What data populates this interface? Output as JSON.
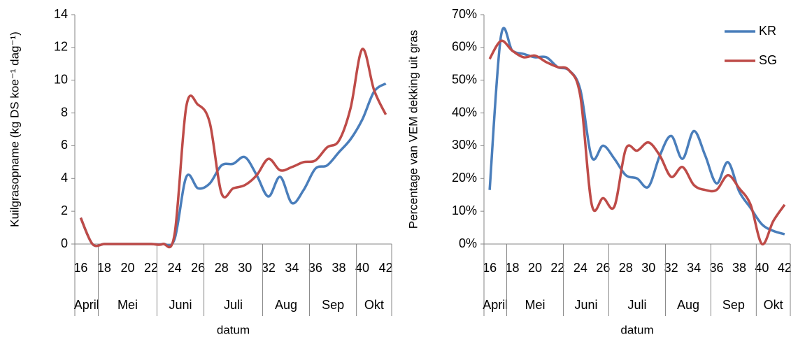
{
  "chart_data": [
    {
      "type": "line",
      "ylabel": "Kuilgrasopname (kg DS koe⁻¹ dag⁻¹)",
      "xlabel": "datum",
      "x": [
        16,
        17,
        18,
        19,
        20,
        21,
        22,
        23,
        24,
        25,
        26,
        27,
        28,
        29,
        30,
        31,
        32,
        33,
        34,
        35,
        36,
        37,
        38,
        39,
        40,
        41,
        42
      ],
      "xlim": [
        15.5,
        42.5
      ],
      "xticks": [
        16,
        18,
        20,
        22,
        24,
        26,
        28,
        30,
        32,
        34,
        36,
        38,
        40,
        42
      ],
      "month_groups": [
        {
          "label": "April",
          "from": 15.5,
          "to": 17.5
        },
        {
          "label": "Mei",
          "from": 17.5,
          "to": 22.5
        },
        {
          "label": "Juni",
          "from": 22.5,
          "to": 26.5
        },
        {
          "label": "Juli",
          "from": 26.5,
          "to": 31.5
        },
        {
          "label": "Aug",
          "from": 31.5,
          "to": 35.5
        },
        {
          "label": "Sep",
          "from": 35.5,
          "to": 39.5
        },
        {
          "label": "Okt",
          "from": 39.5,
          "to": 42.5
        }
      ],
      "ylim": [
        0,
        14
      ],
      "yticks": [
        0,
        2,
        4,
        6,
        8,
        10,
        12,
        14
      ],
      "series": [
        {
          "color": "#4a7ebb",
          "values": [
            1.6,
            0,
            0,
            0,
            0,
            0,
            0,
            0,
            0.3,
            4.1,
            3.4,
            3.7,
            4.8,
            4.9,
            5.3,
            4.2,
            2.9,
            4.1,
            2.5,
            3.3,
            4.6,
            4.8,
            5.6,
            6.4,
            7.6,
            9.3,
            9.8
          ]
        },
        {
          "color": "#be4b48",
          "values": [
            1.6,
            0,
            0,
            0,
            0,
            0,
            0,
            0,
            0.6,
            8.4,
            8.5,
            7.4,
            3.1,
            3.4,
            3.6,
            4.2,
            5.2,
            4.5,
            4.7,
            5.0,
            5.1,
            5.9,
            6.3,
            8.3,
            11.9,
            9.4,
            7.9
          ]
        }
      ]
    },
    {
      "type": "line",
      "ylabel": "Percentage van VEM dekking uit gras",
      "xlabel": "datum",
      "x": [
        16,
        17,
        18,
        19,
        20,
        21,
        22,
        23,
        24,
        25,
        26,
        27,
        28,
        29,
        30,
        31,
        32,
        33,
        34,
        35,
        36,
        37,
        38,
        39,
        40,
        41,
        42
      ],
      "xlim": [
        15.5,
        42.5
      ],
      "xticks": [
        16,
        18,
        20,
        22,
        24,
        26,
        28,
        30,
        32,
        34,
        36,
        38,
        40,
        42
      ],
      "month_groups": [
        {
          "label": "April",
          "from": 15.5,
          "to": 17.5
        },
        {
          "label": "Mei",
          "from": 17.5,
          "to": 22.5
        },
        {
          "label": "Juni",
          "from": 22.5,
          "to": 26.5
        },
        {
          "label": "Juli",
          "from": 26.5,
          "to": 31.5
        },
        {
          "label": "Aug",
          "from": 31.5,
          "to": 35.5
        },
        {
          "label": "Sep",
          "from": 35.5,
          "to": 39.5
        },
        {
          "label": "Okt",
          "from": 39.5,
          "to": 42.5
        }
      ],
      "ylim": [
        0,
        70
      ],
      "yticks": [
        {
          "value": 0,
          "label": "0%"
        },
        {
          "value": 10,
          "label": "10%"
        },
        {
          "value": 20,
          "label": "20%"
        },
        {
          "value": 30,
          "label": "30%"
        },
        {
          "value": 40,
          "label": "40%"
        },
        {
          "value": 50,
          "label": "50%"
        },
        {
          "value": 60,
          "label": "60%"
        },
        {
          "value": 70,
          "label": "70%"
        }
      ],
      "legend": "upper right",
      "series": [
        {
          "name": "KR",
          "color": "#4a7ebb",
          "values": [
            16.5,
            63.5,
            59,
            58,
            57,
            57,
            54,
            53,
            47,
            26.5,
            30,
            26,
            21,
            20,
            17.5,
            27,
            33,
            26,
            34.5,
            27,
            18.5,
            25,
            16,
            11,
            6,
            4,
            3
          ]
        },
        {
          "name": "SG",
          "color": "#be4b48",
          "values": [
            56.5,
            62,
            59,
            57,
            57.5,
            55.5,
            54,
            53,
            45,
            12,
            14,
            11.5,
            29,
            28.5,
            31,
            27,
            20.5,
            23.5,
            18,
            16.5,
            16.5,
            21,
            17,
            12,
            0,
            7,
            12
          ]
        }
      ]
    }
  ]
}
